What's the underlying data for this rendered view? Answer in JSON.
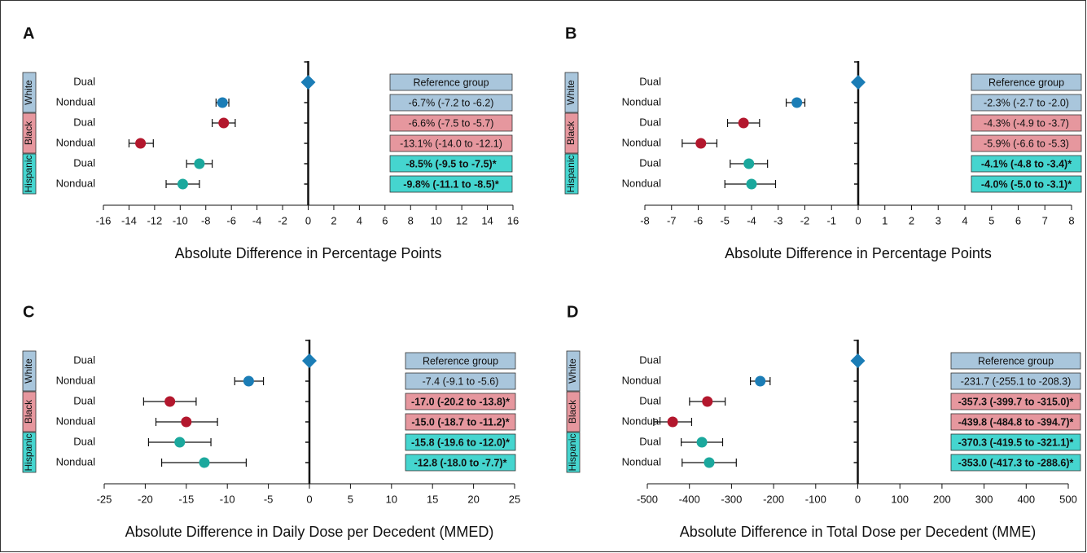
{
  "chart_data": [
    {
      "type": "forest",
      "title": "A",
      "xlabel": "Absolute Difference in Percentage Points",
      "groups": [
        "White",
        "Black",
        "Hispanic"
      ],
      "group_colors": [
        "#a9c6dc",
        "#e6979e",
        "#45d5cf"
      ],
      "marker_colors": [
        "#1b7db6",
        "#b3172d",
        "#1ba89d"
      ],
      "reference": {
        "category": "Dual",
        "label": "Reference group",
        "value": 0,
        "color": "#1b7db6"
      },
      "categories": [
        "Nondual",
        "Dual",
        "Nondual",
        "Dual",
        "Nondual"
      ],
      "values": [
        -6.7,
        -6.6,
        -13.1,
        -8.5,
        -9.8
      ],
      "lower": [
        -7.2,
        -7.5,
        -14.0,
        -9.5,
        -11.1
      ],
      "upper": [
        -6.2,
        -5.7,
        -12.1,
        -7.5,
        -8.5
      ],
      "value_labels": [
        "-6.7% (-7.2 to -6.2)",
        "-6.6% (-7.5 to -5.7)",
        "-13.1% (-14.0 to -12.1)",
        "-8.5% (-9.5 to -7.5)*",
        "-9.8% (-11.1 to -8.5)*"
      ],
      "xlim": [
        -16,
        16
      ],
      "xticks": [
        -16,
        -14,
        -12,
        -10,
        -8,
        -6,
        -4,
        -2,
        0,
        2,
        4,
        6,
        8,
        10,
        12,
        14,
        16
      ]
    },
    {
      "type": "forest",
      "title": "B",
      "xlabel": "Absolute Difference in Percentage Points",
      "groups": [
        "White",
        "Black",
        "Hispanic"
      ],
      "group_colors": [
        "#a9c6dc",
        "#e6979e",
        "#45d5cf"
      ],
      "marker_colors": [
        "#1b7db6",
        "#b3172d",
        "#1ba89d"
      ],
      "reference": {
        "category": "Dual",
        "label": "Reference group",
        "value": 0,
        "color": "#1b7db6"
      },
      "categories": [
        "Nondual",
        "Dual",
        "Nondual",
        "Dual",
        "Nondual"
      ],
      "values": [
        -2.3,
        -4.3,
        -5.9,
        -4.1,
        -4.0
      ],
      "lower": [
        -2.7,
        -4.9,
        -6.6,
        -4.8,
        -5.0
      ],
      "upper": [
        -2.0,
        -3.7,
        -5.3,
        -3.4,
        -3.1
      ],
      "value_labels": [
        "-2.3% (-2.7 to -2.0)",
        "-4.3% (-4.9 to -3.7)",
        "-5.9% (-6.6 to -5.3)",
        "-4.1% (-4.8 to -3.4)*",
        "-4.0% (-5.0 to -3.1)*"
      ],
      "xlim": [
        -8,
        8
      ],
      "xticks": [
        -8,
        -7,
        -6,
        -5,
        -4,
        -3,
        -2,
        -1,
        0,
        1,
        2,
        3,
        4,
        5,
        6,
        7,
        8
      ]
    },
    {
      "type": "forest",
      "title": "C",
      "xlabel": "Absolute Difference in Daily Dose per Decedent (MMED)",
      "groups": [
        "White",
        "Black",
        "Hispanic"
      ],
      "group_colors": [
        "#a9c6dc",
        "#e6979e",
        "#45d5cf"
      ],
      "marker_colors": [
        "#1b7db6",
        "#b3172d",
        "#1ba89d"
      ],
      "reference": {
        "category": "Dual",
        "label": "Reference group",
        "value": 0,
        "color": "#1b7db6"
      },
      "categories": [
        "Nondual",
        "Dual",
        "Nondual",
        "Dual",
        "Nondual"
      ],
      "values": [
        -7.4,
        -17.0,
        -15.0,
        -15.8,
        -12.8
      ],
      "lower": [
        -9.1,
        -20.2,
        -18.7,
        -19.6,
        -18.0
      ],
      "upper": [
        -5.6,
        -13.8,
        -11.2,
        -12.0,
        -7.7
      ],
      "value_labels": [
        "-7.4 (-9.1 to -5.6)",
        "-17.0 (-20.2 to -13.8)*",
        "-15.0 (-18.7 to -11.2)*",
        "-15.8 (-19.6 to -12.0)*",
        "-12.8 (-18.0 to -7.7)*"
      ],
      "xlim": [
        -25,
        25
      ],
      "xticks": [
        -25,
        -20,
        -15,
        -10,
        -5,
        0,
        5,
        10,
        15,
        20,
        25
      ]
    },
    {
      "type": "forest",
      "title": "D",
      "xlabel": "Absolute Difference in Total Dose per Decedent (MME)",
      "groups": [
        "White",
        "Black",
        "Hispanic"
      ],
      "group_colors": [
        "#a9c6dc",
        "#e6979e",
        "#45d5cf"
      ],
      "marker_colors": [
        "#1b7db6",
        "#b3172d",
        "#1ba89d"
      ],
      "reference": {
        "category": "Dual",
        "label": "Reference group",
        "value": 0,
        "color": "#1b7db6"
      },
      "categories": [
        "Nondual",
        "Dual",
        "Nondual",
        "Dual",
        "Nondual"
      ],
      "values": [
        -231.7,
        -357.3,
        -439.8,
        -370.3,
        -353.0
      ],
      "lower": [
        -255.1,
        -399.7,
        -484.8,
        -419.5,
        -417.3
      ],
      "upper": [
        -208.3,
        -315.0,
        -394.7,
        -321.1,
        -288.6
      ],
      "value_labels": [
        "-231.7 (-255.1 to -208.3)",
        "-357.3 (-399.7 to -315.0)*",
        "-439.8 (-484.8 to -394.7)*",
        "-370.3 (-419.5 to -321.1)*",
        "-353.0 (-417.3 to -288.6)*"
      ],
      "xlim": [
        -500,
        500
      ],
      "xticks": [
        -500,
        -400,
        -300,
        -200,
        -100,
        0,
        100,
        200,
        300,
        400,
        500
      ]
    }
  ]
}
